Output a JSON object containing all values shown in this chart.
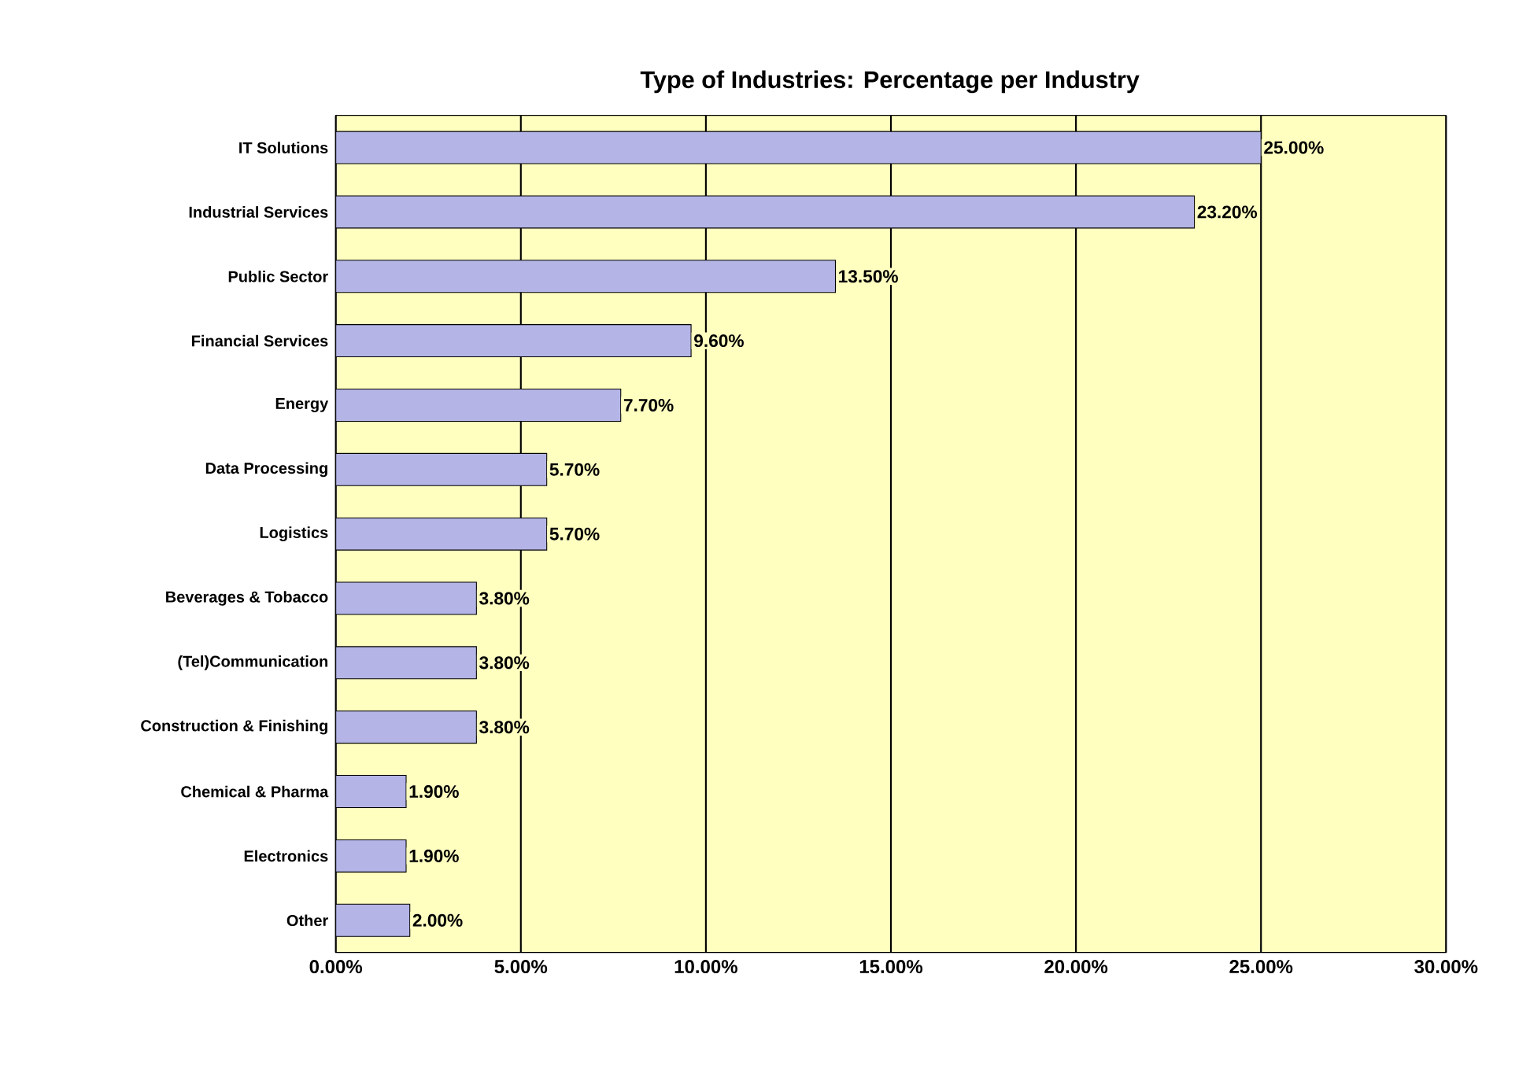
{
  "chart_data": {
    "type": "bar",
    "orientation": "horizontal",
    "title": "Type of Industries: Percentage per Industry",
    "categories": [
      "IT Solutions",
      "Industrial Services",
      "Public Sector",
      "Financial Services",
      "Energy",
      "Data Processing",
      "Logistics",
      "Beverages & Tobacco",
      "(Tel)Communication",
      "Construction & Finishing",
      "Chemical & Pharma",
      "Electronics",
      "Other"
    ],
    "values": [
      25.0,
      23.2,
      13.5,
      9.6,
      7.7,
      5.7,
      5.7,
      3.8,
      3.8,
      3.8,
      1.9,
      1.9,
      2.0
    ],
    "value_labels": [
      "25.00%",
      "23.20%",
      "13.50%",
      "9.60%",
      "7.70%",
      "5.70%",
      "5.70%",
      "3.80%",
      "3.80%",
      "3.80%",
      "1.90%",
      "1.90%",
      "2.00%"
    ],
    "color": "#b4b4e6",
    "xlim": [
      0,
      30
    ],
    "xticks": [
      {
        "value": 0,
        "label": "0.00%"
      },
      {
        "value": 5,
        "label": "5.00%"
      },
      {
        "value": 10,
        "label": "10.00%"
      },
      {
        "value": 15,
        "label": "15.00%"
      },
      {
        "value": 20,
        "label": "20.00%"
      },
      {
        "value": 25,
        "label": "25.00%"
      },
      {
        "value": 30,
        "label": "30.00%"
      }
    ],
    "grid": "x"
  }
}
